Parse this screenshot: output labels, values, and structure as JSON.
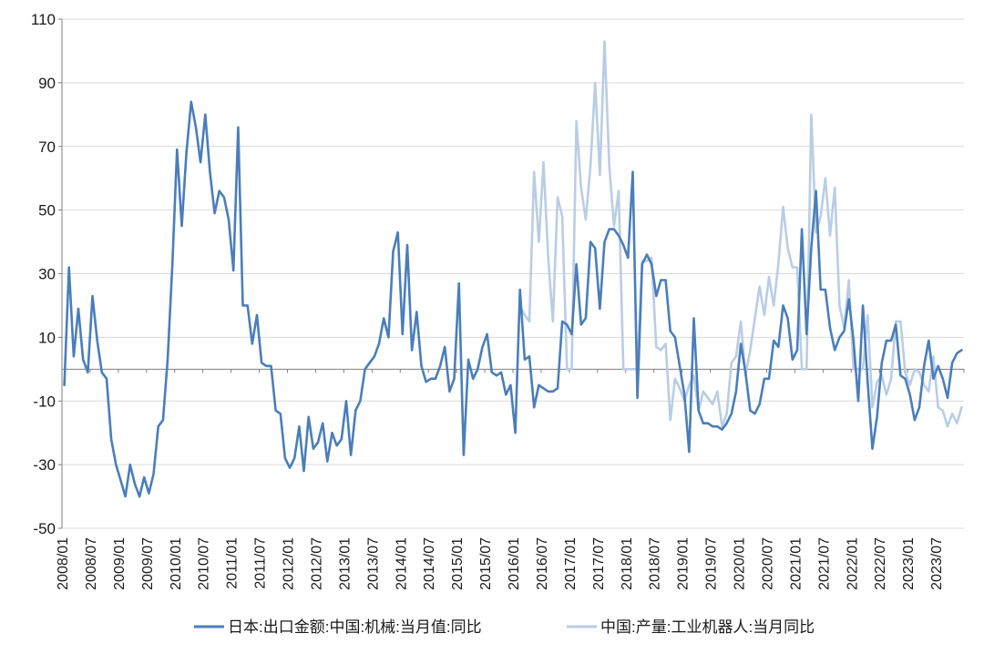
{
  "chart_data": {
    "type": "line",
    "title": "",
    "xlabel": "",
    "ylabel": "",
    "ylim": [
      -50,
      110
    ],
    "yticks": [
      -50,
      -30,
      -10,
      10,
      30,
      50,
      70,
      90,
      110
    ],
    "x_start": "2008-01",
    "x_end": "2023-12",
    "xtick_labels": [
      "2008/01",
      "2008/07",
      "2009/01",
      "2009/07",
      "2010/01",
      "2010/07",
      "2011/01",
      "2011/07",
      "2012/01",
      "2012/07",
      "2013/01",
      "2013/07",
      "2014/01",
      "2014/07",
      "2015/01",
      "2015/07",
      "2016/01",
      "2016/07",
      "2017/01",
      "2017/07",
      "2018/01",
      "2018/07",
      "2019/01",
      "2019/07",
      "2020/01",
      "2020/07",
      "2021/01",
      "2021/07",
      "2022/01",
      "2022/07",
      "2023/01",
      "2023/07"
    ],
    "grid": "horizontal",
    "legend_position": "bottom",
    "series": [
      {
        "name": "日本:出口金额:中国:机械:当月值:同比",
        "color": "#4a7ebb",
        "points": [
          [
            "2008-01",
            -5
          ],
          [
            "2008-02",
            32
          ],
          [
            "2008-03",
            4
          ],
          [
            "2008-04",
            19
          ],
          [
            "2008-05",
            3
          ],
          [
            "2008-06",
            -1
          ],
          [
            "2008-07",
            23
          ],
          [
            "2008-08",
            9
          ],
          [
            "2008-09",
            -1
          ],
          [
            "2008-10",
            -3
          ],
          [
            "2008-11",
            -22
          ],
          [
            "2008-12",
            -30
          ],
          [
            "2009-01",
            -35
          ],
          [
            "2009-02",
            -40
          ],
          [
            "2009-03",
            -30
          ],
          [
            "2009-04",
            -36
          ],
          [
            "2009-05",
            -40
          ],
          [
            "2009-06",
            -34
          ],
          [
            "2009-07",
            -39
          ],
          [
            "2009-08",
            -33
          ],
          [
            "2009-09",
            -18
          ],
          [
            "2009-10",
            -16
          ],
          [
            "2009-11",
            3
          ],
          [
            "2009-12",
            33
          ],
          [
            "2010-01",
            69
          ],
          [
            "2010-02",
            45
          ],
          [
            "2010-03",
            68
          ],
          [
            "2010-04",
            84
          ],
          [
            "2010-05",
            76
          ],
          [
            "2010-06",
            65
          ],
          [
            "2010-07",
            80
          ],
          [
            "2010-08",
            62
          ],
          [
            "2010-09",
            49
          ],
          [
            "2010-10",
            56
          ],
          [
            "2010-11",
            54
          ],
          [
            "2010-12",
            47
          ],
          [
            "2011-01",
            31
          ],
          [
            "2011-02",
            76
          ],
          [
            "2011-03",
            20
          ],
          [
            "2011-04",
            20
          ],
          [
            "2011-05",
            8
          ],
          [
            "2011-06",
            17
          ],
          [
            "2011-07",
            2
          ],
          [
            "2011-08",
            1
          ],
          [
            "2011-09",
            1
          ],
          [
            "2011-10",
            -13
          ],
          [
            "2011-11",
            -14
          ],
          [
            "2011-12",
            -28
          ],
          [
            "2012-01",
            -31
          ],
          [
            "2012-02",
            -28
          ],
          [
            "2012-03",
            -18
          ],
          [
            "2012-04",
            -32
          ],
          [
            "2012-05",
            -15
          ],
          [
            "2012-06",
            -25
          ],
          [
            "2012-07",
            -23
          ],
          [
            "2012-08",
            -17
          ],
          [
            "2012-09",
            -29
          ],
          [
            "2012-10",
            -20
          ],
          [
            "2012-11",
            -24
          ],
          [
            "2012-12",
            -22
          ],
          [
            "2013-01",
            -10
          ],
          [
            "2013-02",
            -27
          ],
          [
            "2013-03",
            -13
          ],
          [
            "2013-04",
            -10
          ],
          [
            "2013-05",
            0
          ],
          [
            "2013-06",
            2
          ],
          [
            "2013-07",
            4
          ],
          [
            "2013-08",
            8
          ],
          [
            "2013-09",
            16
          ],
          [
            "2013-10",
            10
          ],
          [
            "2013-11",
            37
          ],
          [
            "2013-12",
            43
          ],
          [
            "2014-01",
            11
          ],
          [
            "2014-02",
            39
          ],
          [
            "2014-03",
            6
          ],
          [
            "2014-04",
            18
          ],
          [
            "2014-05",
            1
          ],
          [
            "2014-06",
            -4
          ],
          [
            "2014-07",
            -3
          ],
          [
            "2014-08",
            -3
          ],
          [
            "2014-09",
            1
          ],
          [
            "2014-10",
            7
          ],
          [
            "2014-11",
            -7
          ],
          [
            "2014-12",
            -3
          ],
          [
            "2015-01",
            27
          ],
          [
            "2015-02",
            -27
          ],
          [
            "2015-03",
            3
          ],
          [
            "2015-04",
            -3
          ],
          [
            "2015-05",
            0
          ],
          [
            "2015-06",
            7
          ],
          [
            "2015-07",
            11
          ],
          [
            "2015-08",
            -1
          ],
          [
            "2015-09",
            -2
          ],
          [
            "2015-10",
            -1
          ],
          [
            "2015-11",
            -8
          ],
          [
            "2015-12",
            -5
          ],
          [
            "2016-01",
            -20
          ],
          [
            "2016-02",
            25
          ],
          [
            "2016-03",
            3
          ],
          [
            "2016-04",
            4
          ],
          [
            "2016-05",
            -12
          ],
          [
            "2016-06",
            -5
          ],
          [
            "2016-07",
            -6
          ],
          [
            "2016-08",
            -7
          ],
          [
            "2016-09",
            -7
          ],
          [
            "2016-10",
            -6
          ],
          [
            "2016-11",
            15
          ],
          [
            "2016-12",
            14
          ],
          [
            "2017-01",
            11
          ],
          [
            "2017-02",
            33
          ],
          [
            "2017-03",
            14
          ],
          [
            "2017-04",
            16
          ],
          [
            "2017-05",
            40
          ],
          [
            "2017-06",
            38
          ],
          [
            "2017-07",
            19
          ],
          [
            "2017-08",
            40
          ],
          [
            "2017-09",
            44
          ],
          [
            "2017-10",
            44
          ],
          [
            "2017-11",
            42
          ],
          [
            "2017-12",
            39
          ],
          [
            "2018-01",
            35
          ],
          [
            "2018-02",
            62
          ],
          [
            "2018-03",
            -9
          ],
          [
            "2018-04",
            33
          ],
          [
            "2018-05",
            36
          ],
          [
            "2018-06",
            33
          ],
          [
            "2018-07",
            23
          ],
          [
            "2018-08",
            28
          ],
          [
            "2018-09",
            28
          ],
          [
            "2018-10",
            12
          ],
          [
            "2018-11",
            10
          ],
          [
            "2018-12",
            1
          ],
          [
            "2019-01",
            -8
          ],
          [
            "2019-02",
            -26
          ],
          [
            "2019-03",
            16
          ],
          [
            "2019-04",
            -13
          ],
          [
            "2019-05",
            -17
          ],
          [
            "2019-06",
            -17
          ],
          [
            "2019-07",
            -18
          ],
          [
            "2019-08",
            -18
          ],
          [
            "2019-09",
            -19
          ],
          [
            "2019-10",
            -17
          ],
          [
            "2019-11",
            -14
          ],
          [
            "2019-12",
            -7
          ],
          [
            "2020-01",
            8
          ],
          [
            "2020-02",
            -1
          ],
          [
            "2020-03",
            -13
          ],
          [
            "2020-04",
            -14
          ],
          [
            "2020-05",
            -11
          ],
          [
            "2020-06",
            -3
          ],
          [
            "2020-07",
            -3
          ],
          [
            "2020-08",
            9
          ],
          [
            "2020-09",
            7
          ],
          [
            "2020-10",
            20
          ],
          [
            "2020-11",
            16
          ],
          [
            "2020-12",
            3
          ],
          [
            "2021-01",
            6
          ],
          [
            "2021-02",
            44
          ],
          [
            "2021-03",
            11
          ],
          [
            "2021-04",
            38
          ],
          [
            "2021-05",
            56
          ],
          [
            "2021-06",
            25
          ],
          [
            "2021-07",
            25
          ],
          [
            "2021-08",
            13
          ],
          [
            "2021-09",
            6
          ],
          [
            "2021-10",
            10
          ],
          [
            "2021-11",
            12
          ],
          [
            "2021-12",
            22
          ],
          [
            "2022-01",
            9
          ],
          [
            "2022-02",
            -10
          ],
          [
            "2022-03",
            20
          ],
          [
            "2022-04",
            -4
          ],
          [
            "2022-05",
            -25
          ],
          [
            "2022-06",
            -15
          ],
          [
            "2022-07",
            2
          ],
          [
            "2022-08",
            9
          ],
          [
            "2022-09",
            9
          ],
          [
            "2022-10",
            14
          ],
          [
            "2022-11",
            -2
          ],
          [
            "2022-12",
            -3
          ],
          [
            "2023-01",
            -8
          ],
          [
            "2023-02",
            -16
          ],
          [
            "2023-03",
            -12
          ],
          [
            "2023-04",
            1
          ],
          [
            "2023-05",
            9
          ],
          [
            "2023-06",
            -3
          ],
          [
            "2023-07",
            1
          ],
          [
            "2023-08",
            -3
          ],
          [
            "2023-09",
            -9
          ],
          [
            "2023-10",
            2
          ],
          [
            "2023-11",
            5
          ],
          [
            "2023-12",
            6
          ]
        ]
      },
      {
        "name": "中国:产量:工业机器人:当月同比",
        "color": "#b9cde4",
        "points": [
          [
            "2016-02",
            20
          ],
          [
            "2016-03",
            17
          ],
          [
            "2016-04",
            15
          ],
          [
            "2016-05",
            62
          ],
          [
            "2016-06",
            40
          ],
          [
            "2016-07",
            65
          ],
          [
            "2016-08",
            35
          ],
          [
            "2016-09",
            15
          ],
          [
            "2016-10",
            54
          ],
          [
            "2016-11",
            48
          ],
          [
            "2016-12",
            0
          ],
          [
            "2017-01",
            0
          ],
          [
            "2017-02",
            78
          ],
          [
            "2017-03",
            57
          ],
          [
            "2017-04",
            47
          ],
          [
            "2017-05",
            64
          ],
          [
            "2017-06",
            90
          ],
          [
            "2017-07",
            61
          ],
          [
            "2017-08",
            103
          ],
          [
            "2017-09",
            64
          ],
          [
            "2017-10",
            45
          ],
          [
            "2017-11",
            56
          ],
          [
            "2017-12",
            0
          ],
          [
            "2018-01",
            0
          ],
          [
            "2018-02",
            0
          ],
          [
            "2018-03",
            0
          ],
          [
            "2018-04",
            34
          ],
          [
            "2018-05",
            34
          ],
          [
            "2018-06",
            35
          ],
          [
            "2018-07",
            7
          ],
          [
            "2018-08",
            6
          ],
          [
            "2018-09",
            8
          ],
          [
            "2018-10",
            -16
          ],
          [
            "2018-11",
            -3
          ],
          [
            "2018-12",
            -6
          ],
          [
            "2019-01",
            -10
          ],
          [
            "2019-02",
            -5
          ],
          [
            "2019-03",
            -2
          ],
          [
            "2019-04",
            -13
          ],
          [
            "2019-05",
            -7
          ],
          [
            "2019-06",
            -9
          ],
          [
            "2019-07",
            -11
          ],
          [
            "2019-08",
            -7
          ],
          [
            "2019-09",
            -18
          ],
          [
            "2019-10",
            -14
          ],
          [
            "2019-11",
            2
          ],
          [
            "2019-12",
            4
          ],
          [
            "2020-01",
            15
          ],
          [
            "2020-02",
            -2
          ],
          [
            "2020-03",
            6
          ],
          [
            "2020-04",
            16
          ],
          [
            "2020-05",
            26
          ],
          [
            "2020-06",
            17
          ],
          [
            "2020-07",
            29
          ],
          [
            "2020-08",
            20
          ],
          [
            "2020-09",
            33
          ],
          [
            "2020-10",
            51
          ],
          [
            "2020-11",
            38
          ],
          [
            "2020-12",
            32
          ],
          [
            "2021-01",
            32
          ],
          [
            "2021-02",
            0
          ],
          [
            "2021-03",
            0
          ],
          [
            "2021-04",
            80
          ],
          [
            "2021-05",
            43
          ],
          [
            "2021-06",
            48
          ],
          [
            "2021-07",
            60
          ],
          [
            "2021-08",
            42
          ],
          [
            "2021-09",
            57
          ],
          [
            "2021-10",
            20
          ],
          [
            "2021-11",
            13
          ],
          [
            "2021-12",
            28
          ],
          [
            "2022-01",
            0
          ],
          [
            "2022-02",
            0
          ],
          [
            "2022-03",
            0
          ],
          [
            "2022-04",
            17
          ],
          [
            "2022-05",
            -12
          ],
          [
            "2022-06",
            -4
          ],
          [
            "2022-07",
            -2
          ],
          [
            "2022-08",
            -8
          ],
          [
            "2022-09",
            -3
          ],
          [
            "2022-10",
            15
          ],
          [
            "2022-11",
            15
          ],
          [
            "2022-12",
            -1
          ],
          [
            "2023-01",
            -5
          ],
          [
            "2023-02",
            0
          ],
          [
            "2023-03",
            -1
          ],
          [
            "2023-04",
            -5
          ],
          [
            "2023-05",
            -7
          ],
          [
            "2023-06",
            4
          ],
          [
            "2023-07",
            -12
          ],
          [
            "2023-08",
            -13
          ],
          [
            "2023-09",
            -18
          ],
          [
            "2023-10",
            -14
          ],
          [
            "2023-11",
            -17
          ],
          [
            "2023-12",
            -12
          ]
        ]
      }
    ]
  }
}
